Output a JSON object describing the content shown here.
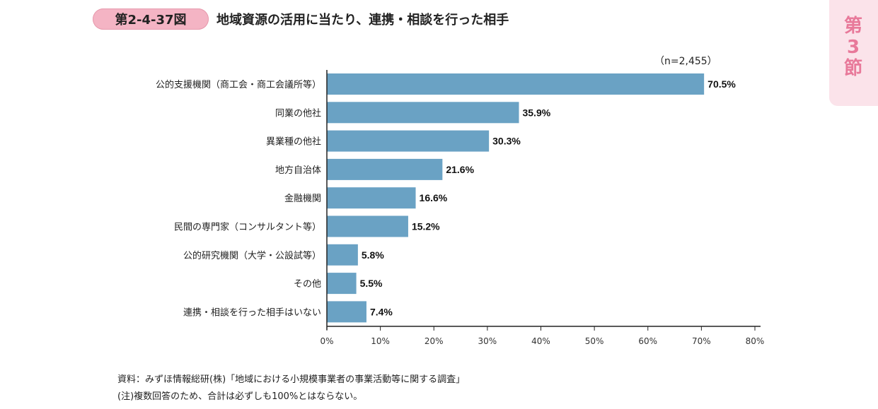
{
  "header": {
    "figure_number": "第2-4-37図",
    "title": "地域資源の活用に当たり、連携・相談を行った相手",
    "section_tab": "第\n3\n節"
  },
  "chart_data": {
    "type": "bar",
    "orientation": "horizontal",
    "note": "（n=2,455）",
    "categories": [
      "公的支援機関（商工会・商工会議所等）",
      "同業の他社",
      "異業種の他社",
      "地方自治体",
      "金融機関",
      "民間の専門家（コンサルタント等）",
      "公的研究機関（大学・公設試等）",
      "その他",
      "連携・相談を行った相手はいない"
    ],
    "values": [
      70.5,
      35.9,
      30.3,
      21.6,
      16.6,
      15.2,
      5.8,
      5.5,
      7.4
    ],
    "value_labels": [
      "70.5%",
      "35.9%",
      "30.3%",
      "21.6%",
      "16.6%",
      "15.2%",
      "5.8%",
      "5.5%",
      "7.4%"
    ],
    "xlim": [
      0,
      80
    ],
    "xticks": [
      0,
      10,
      20,
      30,
      40,
      50,
      60,
      70,
      80
    ],
    "xtick_labels": [
      "0%",
      "10%",
      "20%",
      "30%",
      "40%",
      "50%",
      "60%",
      "70%",
      "80%"
    ],
    "bar_color": "#6aa2c4",
    "grid": false,
    "legend": "none"
  },
  "footer": {
    "source": "資料：みずほ情報総研(株)「地域における小規模事業者の事業活動等に関する調査」",
    "note": "(注)複数回答のため、合計は必ずしも100%とはならない。"
  }
}
